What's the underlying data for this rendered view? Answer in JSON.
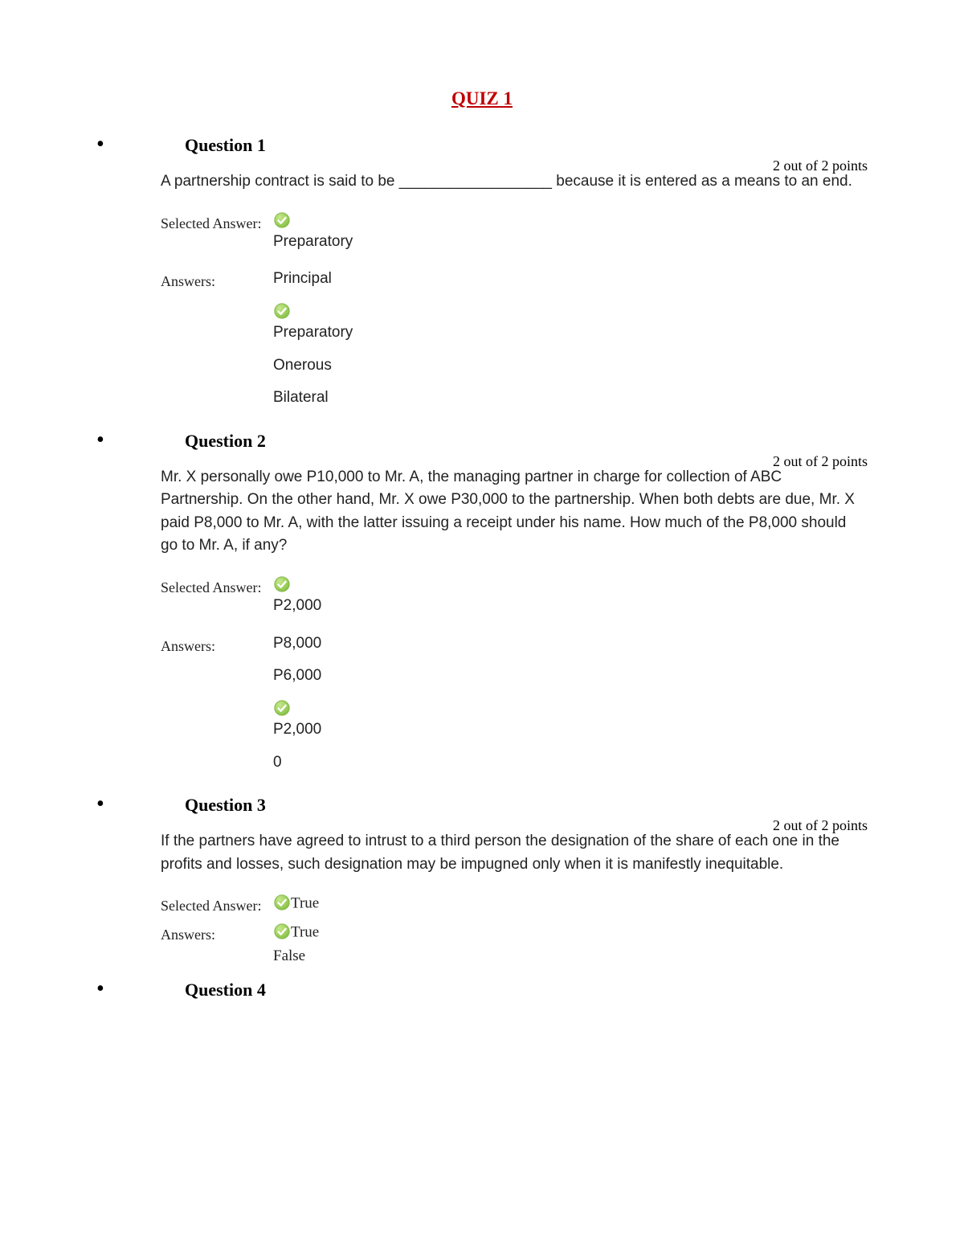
{
  "title": "QUIZ 1",
  "colors": {
    "title": "#c00000",
    "check_fill": "#8bc34a",
    "check_stroke": "#7cb342",
    "check_tick": "#ffffff",
    "text": "#000000"
  },
  "questions": [
    {
      "num": "Question 1",
      "score": "2 out of 2 points",
      "text": "A partnership contract is said to be __________________ because it is entered as a means to an end.",
      "selected": {
        "correct": true,
        "value": "Preparatory"
      },
      "answers": [
        {
          "correct": false,
          "value": "Principal"
        },
        {
          "correct": true,
          "value": "Preparatory"
        },
        {
          "correct": false,
          "value": "Onerous"
        },
        {
          "correct": false,
          "value": "Bilateral"
        }
      ],
      "tight": false
    },
    {
      "num": "Question 2",
      "score": "2 out of 2 points",
      "text": "Mr. X personally owe P10,000 to Mr. A, the managing partner in charge for collection of ABC Partnership. On the other hand, Mr. X owe P30,000 to the partnership. When both debts are due, Mr. X paid P8,000 to Mr. A, with the latter issuing a receipt under his name. How much of the P8,000 should go to Mr. A, if any?",
      "selected": {
        "correct": true,
        "value": "P2,000"
      },
      "answers": [
        {
          "correct": false,
          "value": "P8,000"
        },
        {
          "correct": false,
          "value": "P6,000"
        },
        {
          "correct": true,
          "value": "P2,000"
        },
        {
          "correct": false,
          "value": "0"
        }
      ],
      "tight": false
    },
    {
      "num": "Question 3",
      "score": "2 out of 2 points",
      "text": "If the partners have agreed to intrust to a third person the designation of the share of each one in the profits and losses, such designation may be impugned only when it is manifestly inequitable.",
      "selected": {
        "correct": true,
        "value": "True"
      },
      "answers": [
        {
          "correct": true,
          "value": "True"
        },
        {
          "correct": false,
          "value": "False"
        }
      ],
      "tight": true
    },
    {
      "num": "Question 4",
      "score": "",
      "text": "",
      "selected": null,
      "answers": [],
      "tight": false
    }
  ]
}
